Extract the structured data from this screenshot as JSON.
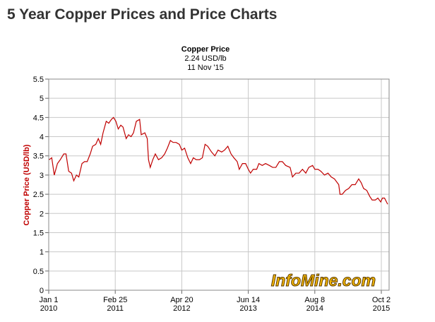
{
  "chart_data": {
    "type": "line",
    "title": "5 Year Copper Prices and Price Charts",
    "subtitle": [
      "Copper Price",
      "2.24 USD/lb",
      "11 Nov '15"
    ],
    "y_label": "Copper Price (USD/lb)",
    "watermark": "InfoMine.com",
    "grid": true,
    "xlim": [
      "2010-01-01",
      "2015-11-20"
    ],
    "xticks": [
      {
        "value": "2010-01-01",
        "label": [
          "Jan 1",
          "2010"
        ]
      },
      {
        "value": "2011-02-25",
        "label": [
          "Feb 25",
          "2011"
        ]
      },
      {
        "value": "2012-04-20",
        "label": [
          "Apr 20",
          "2012"
        ]
      },
      {
        "value": "2013-06-14",
        "label": [
          "Jun 14",
          "2013"
        ]
      },
      {
        "value": "2014-08-08",
        "label": [
          "Aug 8",
          "2014"
        ]
      },
      {
        "value": "2015-10-02",
        "label": [
          "Oct 2",
          "2015"
        ]
      }
    ],
    "ylim": [
      0,
      5.5
    ],
    "yticks": [
      0,
      0.5,
      1,
      1.5,
      2,
      2.5,
      3,
      3.5,
      4,
      4.5,
      5,
      5.5
    ],
    "x": [
      "2010-01-04",
      "2010-01-20",
      "2010-02-05",
      "2010-02-25",
      "2010-03-15",
      "2010-04-06",
      "2010-04-20",
      "2010-05-07",
      "2010-05-25",
      "2010-06-08",
      "2010-06-25",
      "2010-07-10",
      "2010-07-30",
      "2010-08-15",
      "2010-09-01",
      "2010-09-20",
      "2010-10-05",
      "2010-10-25",
      "2010-11-10",
      "2010-11-25",
      "2010-12-10",
      "2010-12-30",
      "2011-01-15",
      "2011-02-01",
      "2011-02-14",
      "2011-03-01",
      "2011-03-16",
      "2011-04-01",
      "2011-04-15",
      "2011-05-05",
      "2011-05-20",
      "2011-06-05",
      "2011-06-20",
      "2011-07-08",
      "2011-07-29",
      "2011-08-08",
      "2011-08-31",
      "2011-09-15",
      "2011-09-23",
      "2011-10-04",
      "2011-10-20",
      "2011-11-05",
      "2011-11-25",
      "2011-12-15",
      "2012-01-03",
      "2012-01-20",
      "2012-02-08",
      "2012-02-25",
      "2012-03-15",
      "2012-04-05",
      "2012-04-20",
      "2012-05-08",
      "2012-05-28",
      "2012-06-15",
      "2012-07-02",
      "2012-07-20",
      "2012-08-10",
      "2012-08-28",
      "2012-09-14",
      "2012-10-01",
      "2012-10-25",
      "2012-11-15",
      "2012-12-05",
      "2012-12-28",
      "2013-01-15",
      "2013-02-05",
      "2013-02-25",
      "2013-03-15",
      "2013-04-05",
      "2013-04-18",
      "2013-05-08",
      "2013-05-28",
      "2013-06-14",
      "2013-06-28",
      "2013-07-15",
      "2013-08-06",
      "2013-08-20",
      "2013-09-10",
      "2013-10-01",
      "2013-10-25",
      "2013-11-15",
      "2013-12-05",
      "2013-12-27",
      "2014-01-15",
      "2014-02-05",
      "2014-03-05",
      "2014-03-20",
      "2014-04-10",
      "2014-05-01",
      "2014-05-22",
      "2014-06-12",
      "2014-07-01",
      "2014-07-25",
      "2014-08-08",
      "2014-08-28",
      "2014-09-15",
      "2014-10-08",
      "2014-10-30",
      "2014-11-20",
      "2014-12-10",
      "2015-01-06",
      "2015-01-14",
      "2015-01-28",
      "2015-02-18",
      "2015-03-10",
      "2015-03-30",
      "2015-04-20",
      "2015-05-12",
      "2015-05-28",
      "2015-06-12",
      "2015-07-02",
      "2015-07-20",
      "2015-08-05",
      "2015-08-25",
      "2015-09-10",
      "2015-09-28",
      "2015-10-09",
      "2015-10-22",
      "2015-11-11"
    ],
    "series": [
      {
        "name": "Copper Price",
        "color": "#c00000",
        "values": [
          3.4,
          3.45,
          3.0,
          3.3,
          3.4,
          3.55,
          3.55,
          3.1,
          3.05,
          2.85,
          3.0,
          2.95,
          3.3,
          3.35,
          3.35,
          3.55,
          3.75,
          3.8,
          3.95,
          3.8,
          4.1,
          4.4,
          4.35,
          4.45,
          4.5,
          4.4,
          4.2,
          4.3,
          4.25,
          3.95,
          4.05,
          4.0,
          4.1,
          4.4,
          4.45,
          4.05,
          4.1,
          3.95,
          3.4,
          3.2,
          3.4,
          3.55,
          3.4,
          3.45,
          3.55,
          3.7,
          3.9,
          3.85,
          3.85,
          3.8,
          3.65,
          3.7,
          3.45,
          3.3,
          3.45,
          3.4,
          3.4,
          3.45,
          3.8,
          3.75,
          3.6,
          3.5,
          3.65,
          3.6,
          3.65,
          3.75,
          3.55,
          3.45,
          3.35,
          3.15,
          3.3,
          3.3,
          3.15,
          3.05,
          3.15,
          3.15,
          3.3,
          3.25,
          3.3,
          3.25,
          3.2,
          3.2,
          3.35,
          3.35,
          3.25,
          3.2,
          2.95,
          3.05,
          3.05,
          3.15,
          3.05,
          3.2,
          3.25,
          3.15,
          3.15,
          3.1,
          3.0,
          3.05,
          2.95,
          2.9,
          2.75,
          2.5,
          2.5,
          2.6,
          2.65,
          2.75,
          2.75,
          2.9,
          2.8,
          2.65,
          2.6,
          2.45,
          2.35,
          2.35,
          2.4,
          2.3,
          2.4,
          2.4,
          2.24
        ]
      }
    ]
  }
}
